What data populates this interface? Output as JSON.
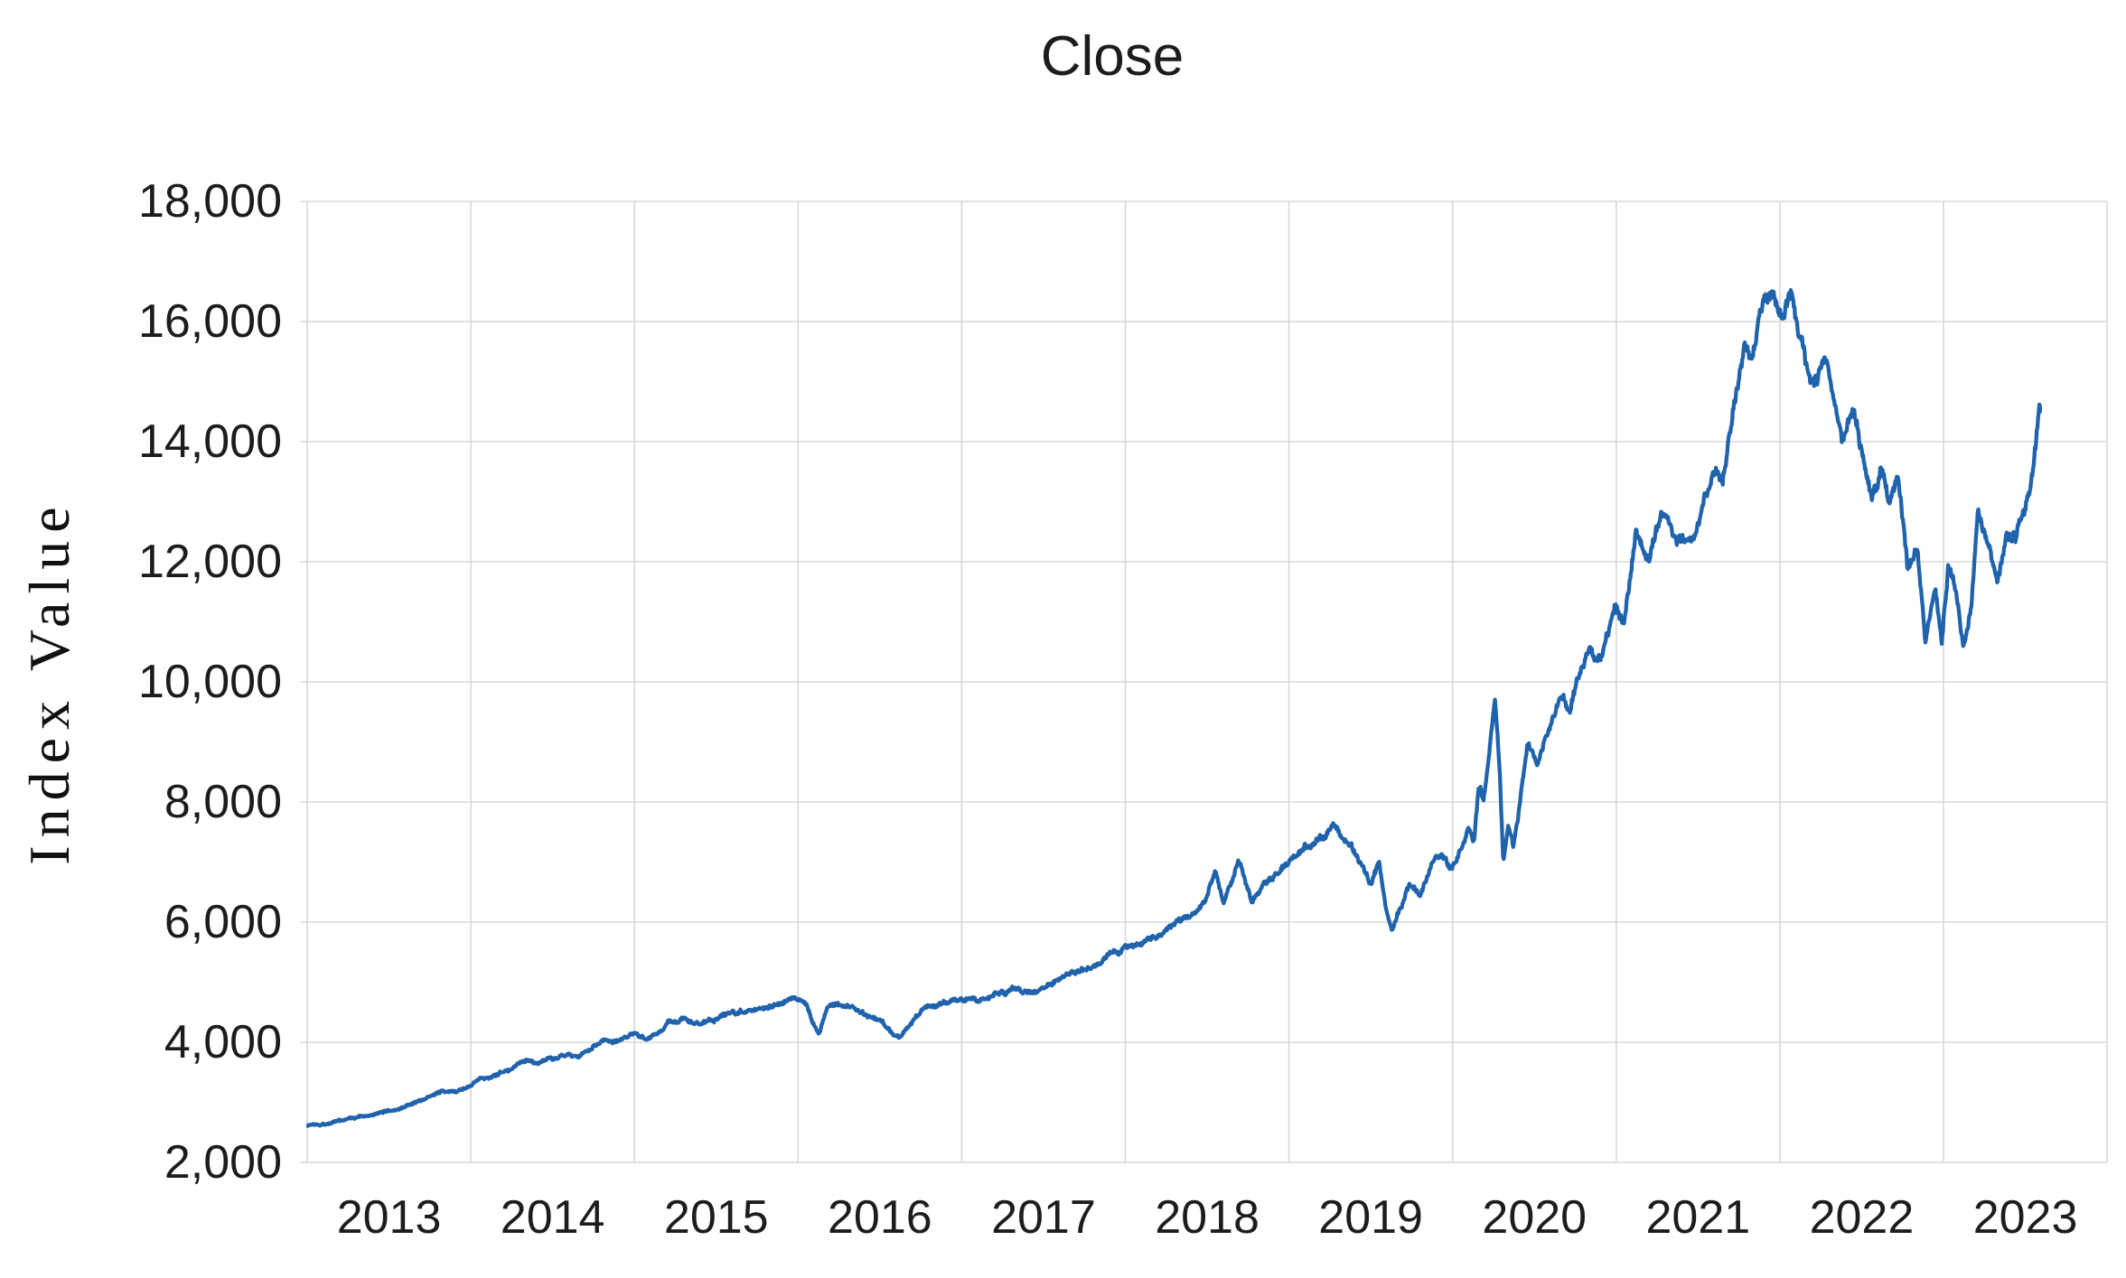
{
  "chart_data": {
    "type": "line",
    "title": "Close",
    "xlabel": "",
    "ylabel": "Index Value",
    "legend": "none",
    "grid": "both",
    "background": "#ffffff",
    "colors": {
      "grid": "#d8d8d8",
      "text": "#1c1c1c",
      "line": "#2063ad"
    },
    "y_axis": {
      "min": 2000,
      "max": 18000,
      "step": 2000,
      "ticks": [
        {
          "label": "18,000",
          "value": 18000
        },
        {
          "label": "16,000",
          "value": 16000
        },
        {
          "label": "14,000",
          "value": 14000
        },
        {
          "label": "12,000",
          "value": 12000
        },
        {
          "label": "10,000",
          "value": 10000
        },
        {
          "label": "8,000",
          "value": 8000
        },
        {
          "label": "6,000",
          "value": 6000
        },
        {
          "label": "4,000",
          "value": 4000
        },
        {
          "label": "2,000",
          "value": 2000
        }
      ]
    },
    "x_axis": {
      "tick_labels": [
        "2013",
        "2014",
        "2015",
        "2016",
        "2017",
        "2018",
        "2019",
        "2020",
        "2021",
        "2022",
        "2023"
      ],
      "style": "yearly gridlines at category boundaries, labels centered between them",
      "domain_decimal_years": [
        2012.505,
        2023.09
      ]
    },
    "series": [
      {
        "name": "Close",
        "color": "#2063ad",
        "sampling": "daily closes; anchor points [decimal_year, index_value] digitized from figure, daily jitter between anchors",
        "points": [
          [
            2012.505,
            2620
          ],
          [
            2012.6,
            2660
          ],
          [
            2012.78,
            2730
          ],
          [
            2012.9,
            2760
          ],
          [
            2013.0,
            2850
          ],
          [
            2013.12,
            2980
          ],
          [
            2013.25,
            3120
          ],
          [
            2013.35,
            3220
          ],
          [
            2013.42,
            3160
          ],
          [
            2013.6,
            3430
          ],
          [
            2013.77,
            3580
          ],
          [
            2013.85,
            3680
          ],
          [
            2013.91,
            3610
          ],
          [
            2014.05,
            3800
          ],
          [
            2014.16,
            3740
          ],
          [
            2014.3,
            3980
          ],
          [
            2014.43,
            4100
          ],
          [
            2014.5,
            4190
          ],
          [
            2014.57,
            4070
          ],
          [
            2014.7,
            4300
          ],
          [
            2014.79,
            4410
          ],
          [
            2014.9,
            4260
          ],
          [
            2015.07,
            4500
          ],
          [
            2015.2,
            4570
          ],
          [
            2015.32,
            4630
          ],
          [
            2015.49,
            4770
          ],
          [
            2015.55,
            4690
          ],
          [
            2015.6,
            4280
          ],
          [
            2015.63,
            4160
          ],
          [
            2015.68,
            4540
          ],
          [
            2015.73,
            4620
          ],
          [
            2015.87,
            4520
          ],
          [
            2016.0,
            4420
          ],
          [
            2016.08,
            4150
          ],
          [
            2016.12,
            4090
          ],
          [
            2016.28,
            4560
          ],
          [
            2016.48,
            4760
          ],
          [
            2016.61,
            4680
          ],
          [
            2016.81,
            4860
          ],
          [
            2016.94,
            4780
          ],
          [
            2017.11,
            5040
          ],
          [
            2017.3,
            5310
          ],
          [
            2017.5,
            5570
          ],
          [
            2017.69,
            5810
          ],
          [
            2017.86,
            6060
          ],
          [
            2017.97,
            6280
          ],
          [
            2018.05,
            6870
          ],
          [
            2018.1,
            6300
          ],
          [
            2018.19,
            7050
          ],
          [
            2018.27,
            6320
          ],
          [
            2018.35,
            6700
          ],
          [
            2018.46,
            6900
          ],
          [
            2018.6,
            7250
          ],
          [
            2018.77,
            7600
          ],
          [
            2018.88,
            7350
          ],
          [
            2018.95,
            6950
          ],
          [
            2019.0,
            6600
          ],
          [
            2019.05,
            6950
          ],
          [
            2019.09,
            6300
          ],
          [
            2019.13,
            5900
          ],
          [
            2019.24,
            6650
          ],
          [
            2019.3,
            6400
          ],
          [
            2019.4,
            7100
          ],
          [
            2019.49,
            6900
          ],
          [
            2019.6,
            7500
          ],
          [
            2019.63,
            7300
          ],
          [
            2019.66,
            8200
          ],
          [
            2019.69,
            8000
          ],
          [
            2019.72,
            8700
          ],
          [
            2019.76,
            9700
          ],
          [
            2019.79,
            8300
          ],
          [
            2019.81,
            6950
          ],
          [
            2019.84,
            7600
          ],
          [
            2019.87,
            7300
          ],
          [
            2019.96,
            8900
          ],
          [
            2020.02,
            8600
          ],
          [
            2020.16,
            9700
          ],
          [
            2020.22,
            9500
          ],
          [
            2020.32,
            10600
          ],
          [
            2020.4,
            10400
          ],
          [
            2020.49,
            11300
          ],
          [
            2020.55,
            11100
          ],
          [
            2020.62,
            12600
          ],
          [
            2020.7,
            12100
          ],
          [
            2020.78,
            12800
          ],
          [
            2020.88,
            12400
          ],
          [
            2020.98,
            12550
          ],
          [
            2021.09,
            13600
          ],
          [
            2021.15,
            13300
          ],
          [
            2021.22,
            14500
          ],
          [
            2021.28,
            15600
          ],
          [
            2021.33,
            15200
          ],
          [
            2021.4,
            16300
          ],
          [
            2021.47,
            16500
          ],
          [
            2021.52,
            16000
          ],
          [
            2021.58,
            16450
          ],
          [
            2021.64,
            15600
          ],
          [
            2021.7,
            14900
          ],
          [
            2021.78,
            15250
          ],
          [
            2021.88,
            13950
          ],
          [
            2021.95,
            14400
          ],
          [
            2022.06,
            13000
          ],
          [
            2022.12,
            13500
          ],
          [
            2022.17,
            12900
          ],
          [
            2022.22,
            13550
          ],
          [
            2022.28,
            11800
          ],
          [
            2022.34,
            12200
          ],
          [
            2022.39,
            10750
          ],
          [
            2022.45,
            11600
          ],
          [
            2022.49,
            10700
          ],
          [
            2022.53,
            12050
          ],
          [
            2022.58,
            11600
          ],
          [
            2022.62,
            10650
          ],
          [
            2022.67,
            11300
          ],
          [
            2022.71,
            12750
          ],
          [
            2022.76,
            12300
          ],
          [
            2022.83,
            11650
          ],
          [
            2022.88,
            12400
          ],
          [
            2022.94,
            12300
          ],
          [
            2023.0,
            12900
          ],
          [
            2023.04,
            13400
          ],
          [
            2023.07,
            14100
          ],
          [
            2023.09,
            14500
          ]
        ]
      }
    ]
  }
}
